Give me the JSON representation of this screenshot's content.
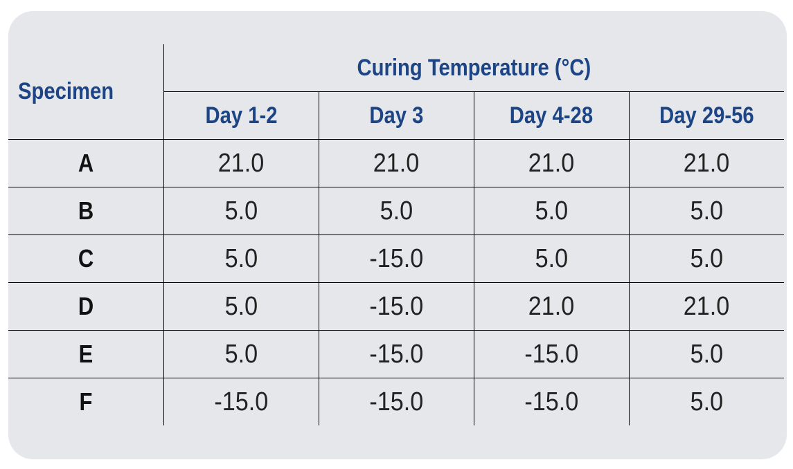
{
  "table": {
    "specimen_header": "Specimen",
    "group_header": "Curing Temperature (°C)",
    "columns": [
      "Day 1-2",
      "Day 3",
      "Day 4-28",
      "Day 29-56"
    ],
    "rows": [
      {
        "label": "A",
        "values": [
          "21.0",
          "21.0",
          "21.0",
          "21.0"
        ]
      },
      {
        "label": "B",
        "values": [
          "5.0",
          "5.0",
          "5.0",
          "5.0"
        ]
      },
      {
        "label": "C",
        "values": [
          "5.0",
          "-15.0",
          "5.0",
          "5.0"
        ]
      },
      {
        "label": "D",
        "values": [
          "5.0",
          "-15.0",
          "21.0",
          "21.0"
        ]
      },
      {
        "label": "E",
        "values": [
          "5.0",
          "-15.0",
          "-15.0",
          "5.0"
        ]
      },
      {
        "label": "F",
        "values": [
          "-15.0",
          "-15.0",
          "-15.0",
          "5.0"
        ]
      }
    ]
  },
  "colors": {
    "header_text": "#1d4585",
    "card_background": "#e6e7eb"
  }
}
